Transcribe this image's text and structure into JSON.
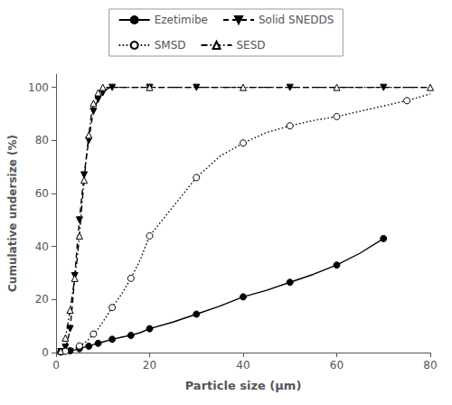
{
  "chart_data": {
    "type": "line",
    "xlabel": "Particle size (μm)",
    "ylabel": "Cumulative undersize (%)",
    "xlim": [
      0,
      80
    ],
    "ylim": [
      0,
      105
    ],
    "xticks": [
      0,
      20,
      40,
      60,
      80
    ],
    "yticks": [
      0,
      20,
      40,
      60,
      80,
      100
    ],
    "grid": false,
    "legend": "top",
    "series": [
      {
        "name": "Ezetimibe",
        "color": "black",
        "line_style": "solid",
        "marker": "circle",
        "x": [
          0.5,
          1,
          2,
          3,
          4,
          5,
          6,
          7,
          8,
          9,
          10,
          12,
          14,
          16,
          18,
          20,
          25,
          30,
          35,
          40,
          45,
          50,
          55,
          60,
          65,
          70
        ],
        "values": [
          0.0,
          0.2,
          0.4,
          0.7,
          1.0,
          1.5,
          2.0,
          2.4,
          3.0,
          3.5,
          4.0,
          5.0,
          5.8,
          6.5,
          7.5,
          9.0,
          11.5,
          14.5,
          17.5,
          21.0,
          23.5,
          26.5,
          29.5,
          33.0,
          37.5,
          43.0
        ],
        "marker_x": [
          1,
          3,
          5,
          7,
          9,
          12,
          16,
          20,
          30,
          40,
          50,
          60,
          70
        ],
        "marker_values": [
          0.2,
          0.7,
          1.5,
          2.4,
          3.5,
          5.0,
          6.5,
          9.0,
          14.5,
          21.0,
          26.5,
          33.0,
          43.0
        ]
      },
      {
        "name": "Solid SNEDDS",
        "color": "black",
        "line_style": "dashed",
        "marker": "triangle-down",
        "x": [
          0.5,
          1,
          1.5,
          2,
          2.5,
          3,
          3.5,
          4,
          4.5,
          5,
          5.5,
          6,
          6.5,
          7,
          7.5,
          8,
          9,
          10,
          11,
          12,
          14,
          16,
          20,
          30,
          40,
          50,
          60,
          70,
          80
        ],
        "values": [
          0.0,
          0.3,
          0.8,
          2.0,
          4.5,
          9.0,
          18.0,
          29.0,
          40.0,
          50.0,
          59.0,
          67.0,
          74.0,
          80.0,
          86.0,
          91.0,
          95.5,
          98.0,
          99.5,
          100.0,
          100.0,
          100.0,
          100.0,
          100.0,
          100.0,
          100.0,
          100.0,
          100.0,
          100.0
        ],
        "marker_x": [
          1,
          2,
          3,
          4,
          5,
          6,
          7,
          8,
          9,
          10,
          12,
          20,
          30,
          50,
          70
        ],
        "marker_values": [
          0.3,
          2.0,
          9.0,
          29.0,
          50.0,
          67.0,
          80.0,
          91.0,
          95.5,
          98.0,
          100.0,
          100.0,
          100.0,
          100.0,
          100.0
        ]
      },
      {
        "name": "SMSD",
        "color": "black",
        "line_style": "dotted",
        "marker": "circle-open",
        "x": [
          0.5,
          1,
          2,
          3,
          4,
          5,
          6,
          7,
          8,
          9,
          10,
          12,
          14,
          16,
          18,
          20,
          25,
          30,
          35,
          40,
          45,
          50,
          55,
          60,
          65,
          70,
          75,
          80
        ],
        "values": [
          0.0,
          0.2,
          0.5,
          1.0,
          1.8,
          2.5,
          3.5,
          5.0,
          7.0,
          9.0,
          11.5,
          17.0,
          22.0,
          28.0,
          35.0,
          44.0,
          55.0,
          66.0,
          74.0,
          79.0,
          83.0,
          85.5,
          87.5,
          89.0,
          91.0,
          93.0,
          95.0,
          97.5
        ],
        "marker_x": [
          2,
          5,
          8,
          12,
          16,
          20,
          30,
          40,
          50,
          60,
          75
        ],
        "marker_values": [
          0.5,
          2.5,
          7.0,
          17.0,
          28.0,
          44.0,
          66.0,
          79.0,
          85.5,
          89.0,
          95.0
        ]
      },
      {
        "name": "SESD",
        "color": "black",
        "line_style": "dashdot",
        "marker": "triangle-up-open",
        "x": [
          0.5,
          1,
          1.5,
          2,
          2.5,
          3,
          3.5,
          4,
          4.5,
          5,
          5.5,
          6,
          6.5,
          7,
          7.5,
          8,
          9,
          10,
          12,
          14,
          20,
          30,
          40,
          50,
          60,
          70,
          80
        ],
        "values": [
          0.0,
          0.5,
          2.0,
          5.5,
          10.5,
          16.0,
          22.0,
          28.0,
          35.0,
          44.0,
          55.0,
          65.0,
          74.0,
          82.0,
          89.0,
          94.0,
          98.0,
          100.0,
          100.0,
          100.0,
          100.0,
          100.0,
          100.0,
          100.0,
          100.0,
          100.0,
          100.0
        ],
        "marker_x": [
          1,
          2,
          3,
          4,
          5,
          6,
          7,
          8,
          9,
          10,
          20,
          40,
          60,
          80
        ],
        "marker_values": [
          0.5,
          5.5,
          16.0,
          28.0,
          44.0,
          65.0,
          82.0,
          94.0,
          98.0,
          100.0,
          100.0,
          100.0,
          100.0,
          100.0
        ]
      }
    ]
  }
}
